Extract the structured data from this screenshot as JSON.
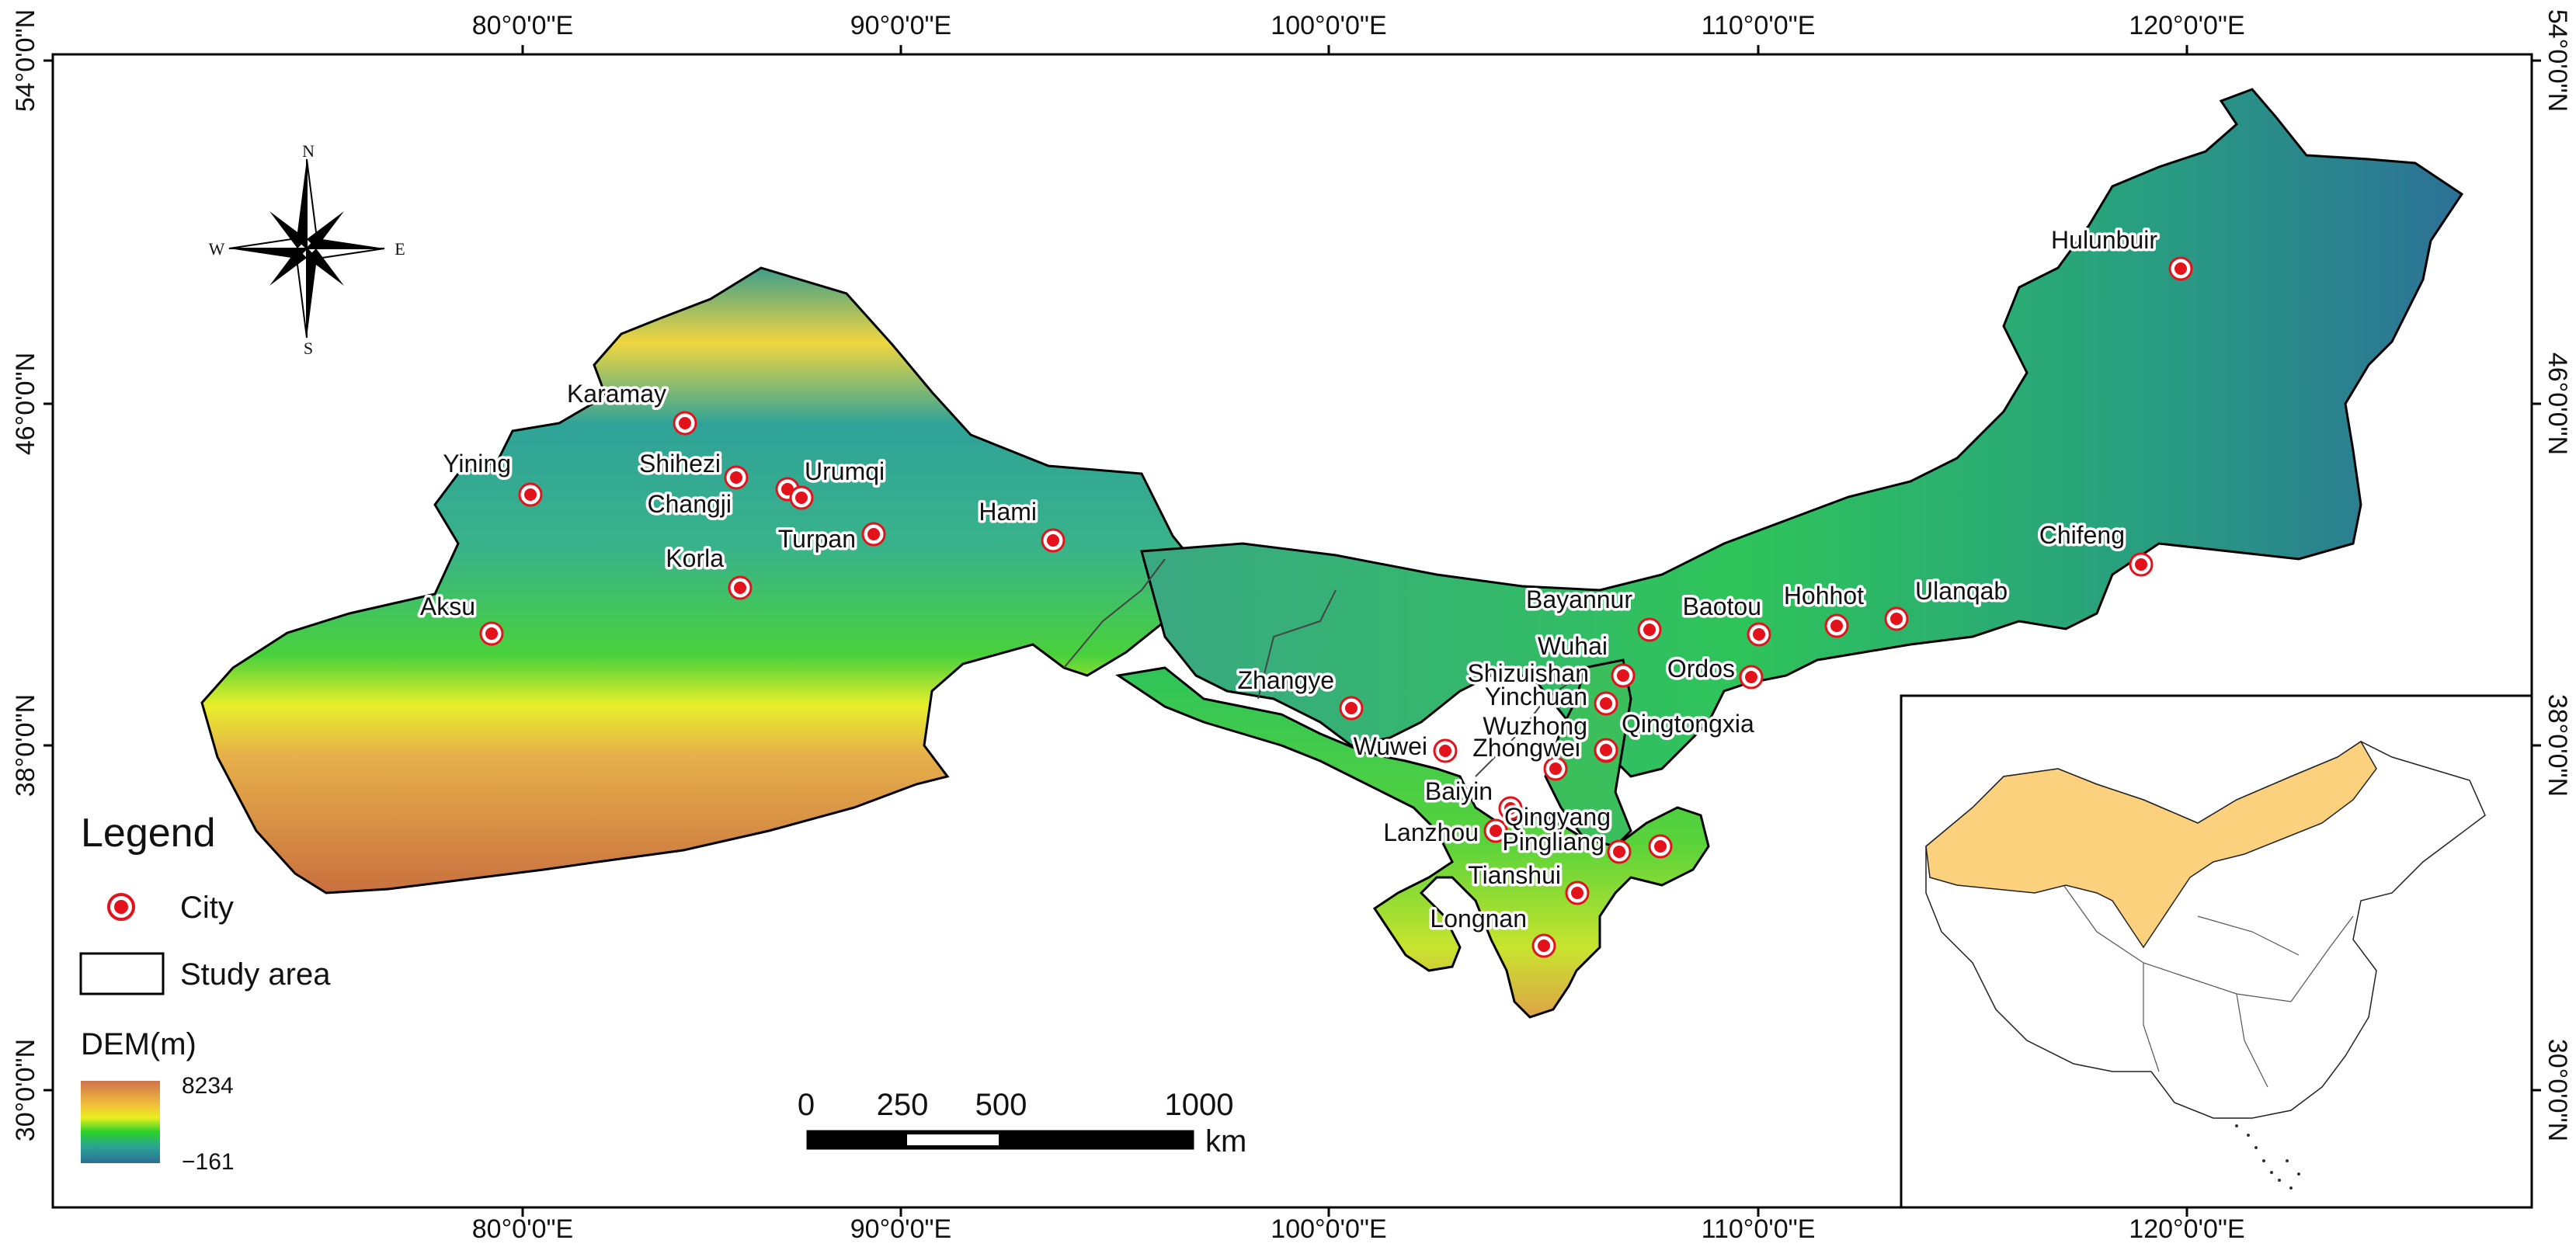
{
  "map": {
    "longitude_labels": [
      "80°0'0\"E",
      "90°0'0\"E",
      "100°0'0\"E",
      "110°0'0\"E",
      "120°0'0\"E"
    ],
    "latitude_labels": [
      "54°0'0\"N",
      "46°0'0\"N",
      "38°0'0\"N",
      "30°0'0\"N"
    ],
    "cities": [
      "Karamay",
      "Yining",
      "Shihezi",
      "Changji",
      "Urumqi",
      "Turpan",
      "Hami",
      "Korla",
      "Aksu",
      "Zhangye",
      "Wuwei",
      "Baiyin",
      "Lanzhou",
      "Tianshui",
      "Longnan",
      "Qingyang",
      "Pingliang",
      "Zhongwei",
      "Wuzhong",
      "Qingtongxia",
      "Yinchuan",
      "Shizuishan",
      "Wuhai",
      "Bayannur",
      "Baotou",
      "Ordos",
      "Hohhot",
      "Ulanqab",
      "Chifeng",
      "Hulunbuir"
    ]
  },
  "compass": {
    "n": "N",
    "s": "S",
    "e": "E",
    "w": "W"
  },
  "legend": {
    "title": "Legend",
    "city_label": "City",
    "study_area_label": "Study area",
    "dem_title": "DEM(m)",
    "dem_max": "8234",
    "dem_min": "−161"
  },
  "scale_bar": {
    "labels": [
      "0",
      "250",
      "500",
      "1000"
    ],
    "unit": "km"
  },
  "colors": {
    "city_marker": "#e3121b",
    "inset_highlight": "#fbd17d",
    "dem_ramp": [
      "#d0724a",
      "#f2c13a",
      "#e9f01e",
      "#2bd12c",
      "#2aa394",
      "#2c6e95"
    ]
  }
}
